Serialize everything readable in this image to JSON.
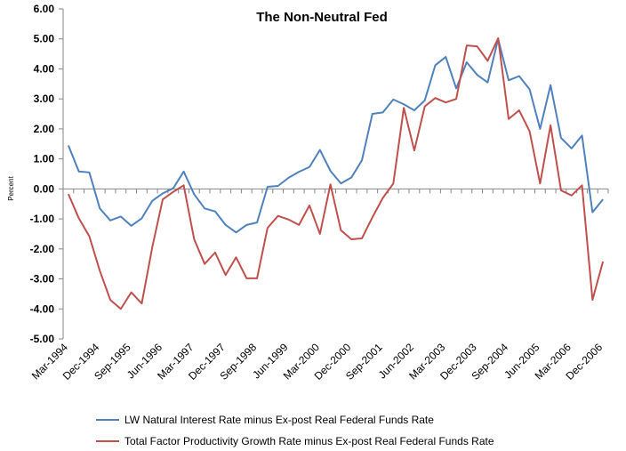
{
  "chart_data": {
    "type": "line",
    "title": "The Non-Neutral Fed",
    "ylabel": "Percent",
    "xlabel": "",
    "ylim": [
      -5,
      6
    ],
    "y_ticks": [
      "6.00",
      "5.00",
      "4.00",
      "3.00",
      "2.00",
      "1.00",
      "0.00",
      "-1.00",
      "-2.00",
      "-3.00",
      "-4.00",
      "-5.00"
    ],
    "x_tick_labels": [
      "Mar-1994",
      "Dec-1994",
      "Sep-1995",
      "Jun-1996",
      "Mar-1997",
      "Dec-1997",
      "Sep-1998",
      "Jun-1999",
      "Mar-2000",
      "Dec-2000",
      "Sep-2001",
      "Jun-2002",
      "Mar-2003",
      "Dec-2003",
      "Sep-2004",
      "Jun-2005",
      "Mar-2006",
      "Dec-2006"
    ],
    "x": [
      "Mar-1994",
      "Jun-1994",
      "Sep-1994",
      "Dec-1994",
      "Mar-1995",
      "Jun-1995",
      "Sep-1995",
      "Dec-1995",
      "Mar-1996",
      "Jun-1996",
      "Sep-1996",
      "Dec-1996",
      "Mar-1997",
      "Jun-1997",
      "Sep-1997",
      "Dec-1997",
      "Mar-1998",
      "Jun-1998",
      "Sep-1998",
      "Dec-1998",
      "Mar-1999",
      "Jun-1999",
      "Sep-1999",
      "Dec-1999",
      "Mar-2000",
      "Jun-2000",
      "Sep-2000",
      "Dec-2000",
      "Mar-2001",
      "Jun-2001",
      "Sep-2001",
      "Dec-2001",
      "Mar-2002",
      "Jun-2002",
      "Sep-2002",
      "Dec-2002",
      "Mar-2003",
      "Jun-2003",
      "Sep-2003",
      "Dec-2003",
      "Mar-2004",
      "Jun-2004",
      "Sep-2004",
      "Dec-2004",
      "Mar-2005",
      "Jun-2005",
      "Sep-2005",
      "Dec-2005",
      "Mar-2006",
      "Jun-2006",
      "Sep-2006",
      "Dec-2006"
    ],
    "series": [
      {
        "name": "LW Natural Interest Rate minus Ex-post Real Federal Funds Rate",
        "color": "#4f81bd",
        "values": [
          1.45,
          0.58,
          0.55,
          -0.65,
          -1.05,
          -0.92,
          -1.23,
          -0.98,
          -0.4,
          -0.15,
          0.02,
          0.58,
          -0.18,
          -0.65,
          -0.75,
          -1.2,
          -1.45,
          -1.2,
          -1.12,
          0.07,
          0.1,
          0.37,
          0.57,
          0.73,
          1.3,
          0.6,
          0.18,
          0.38,
          0.95,
          2.5,
          2.55,
          2.98,
          2.82,
          2.62,
          2.95,
          4.12,
          4.4,
          3.35,
          4.22,
          3.8,
          3.55,
          5.0,
          3.62,
          3.76,
          3.32,
          2.0,
          3.46,
          1.7,
          1.35,
          1.78,
          -0.78,
          -0.35
        ]
      },
      {
        "name": "Total Factor Productivity Growth Rate minus Ex-post Real Federal Funds Rate",
        "color": "#c0504d",
        "values": [
          -0.17,
          -0.98,
          -1.58,
          -2.73,
          -3.7,
          -4.0,
          -3.45,
          -3.82,
          -1.95,
          -0.35,
          -0.1,
          0.12,
          -1.68,
          -2.5,
          -2.12,
          -2.87,
          -2.28,
          -2.98,
          -2.98,
          -1.3,
          -0.9,
          -1.02,
          -1.2,
          -0.55,
          -1.5,
          0.15,
          -1.38,
          -1.68,
          -1.65,
          -0.95,
          -0.3,
          0.18,
          2.7,
          1.28,
          2.75,
          3.03,
          2.88,
          3.0,
          4.78,
          4.75,
          4.27,
          5.02,
          2.33,
          2.62,
          1.92,
          0.18,
          2.12,
          -0.05,
          -0.22,
          0.12,
          -3.7,
          -2.42
        ]
      }
    ],
    "grid": false,
    "legend_position": "bottom"
  }
}
